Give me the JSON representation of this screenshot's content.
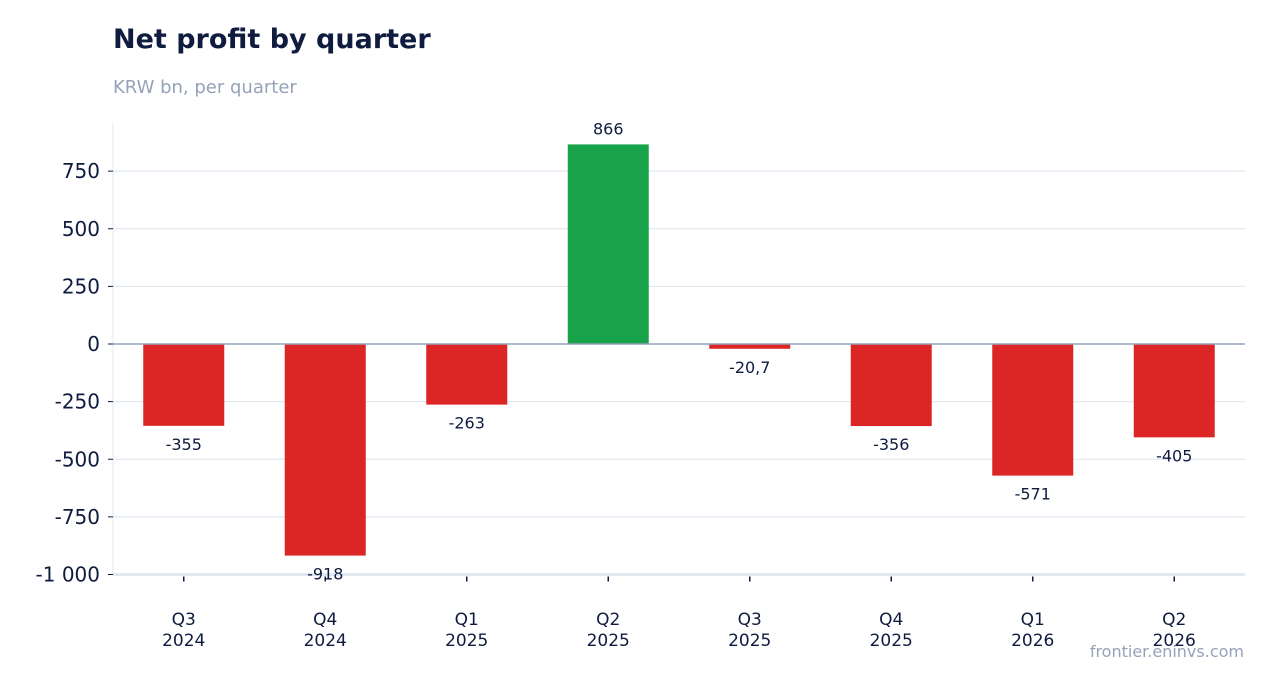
{
  "header": {
    "title": "Net profit by quarter",
    "subtitle": "KRW bn, per quarter"
  },
  "footer": {
    "source": "frontier.eninvs.com"
  },
  "colors": {
    "positive": "#18a34a",
    "negative": "#dc2626",
    "grid": "#e2e8f0",
    "zero_line": "#94a3b8",
    "text": "#0f1c3f"
  },
  "chart_data": {
    "type": "bar",
    "title": "Net profit by quarter",
    "subtitle": "KRW bn, per quarter",
    "xlabel": "",
    "ylabel": "",
    "categories": [
      [
        "Q3",
        "2024"
      ],
      [
        "Q4",
        "2024"
      ],
      [
        "Q1",
        "2025"
      ],
      [
        "Q2",
        "2025"
      ],
      [
        "Q3",
        "2025"
      ],
      [
        "Q4",
        "2025"
      ],
      [
        "Q1",
        "2026"
      ],
      [
        "Q2",
        "2026"
      ]
    ],
    "values": [
      -355,
      -918,
      -263,
      866,
      -20.7,
      -356,
      -571,
      -405
    ],
    "value_labels": [
      "-355",
      "-918",
      "-263",
      "866",
      "-20,7",
      "-356",
      "-571",
      "-405"
    ],
    "ylim": [
      -1000,
      950
    ],
    "yticks": [
      750,
      500,
      250,
      0,
      -250,
      -500,
      -750,
      -1000
    ],
    "ytick_labels": [
      "750",
      "500",
      "250",
      "0",
      "-250",
      "-500",
      "-750",
      "-1 000"
    ],
    "grid": true,
    "legend": "none"
  }
}
